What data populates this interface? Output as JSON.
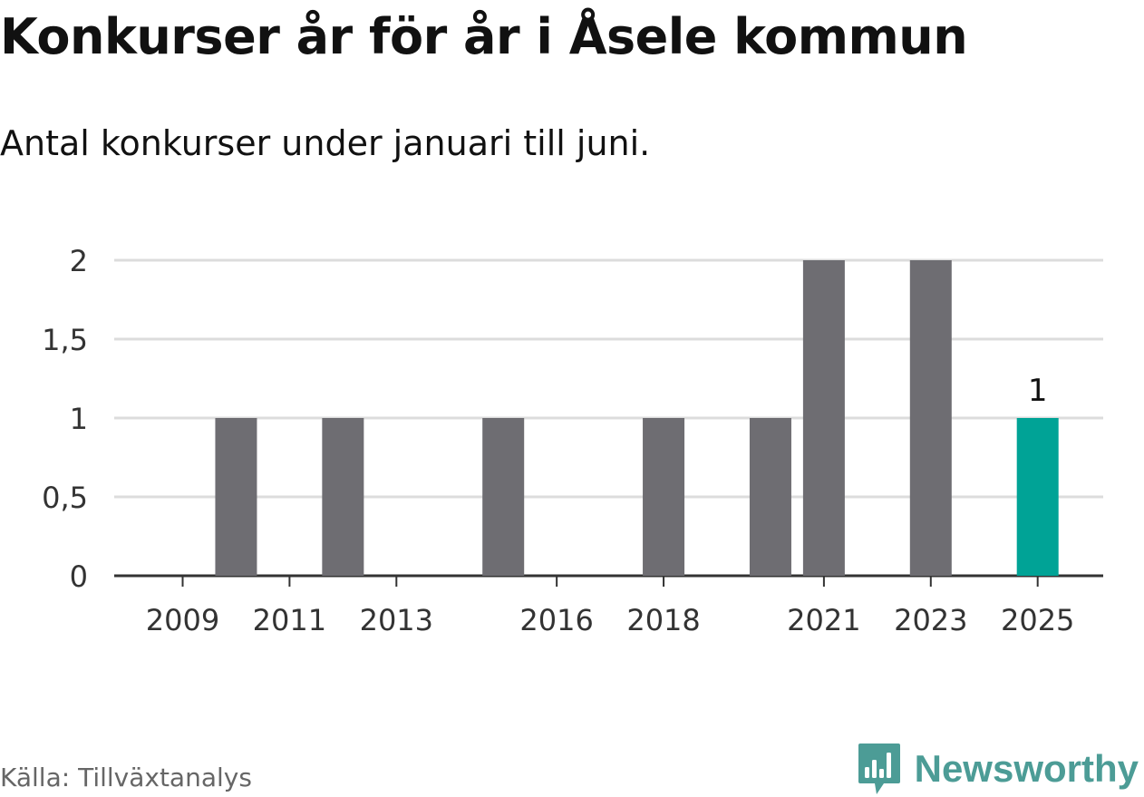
{
  "chart_data": {
    "type": "bar",
    "title": "Konkurser år för år i Åsele kommun",
    "subtitle": "Antal konkurser under januari till juni.",
    "categories": [
      "2009",
      "2010",
      "2011",
      "2012",
      "2013",
      "2014",
      "2015",
      "2016",
      "2017",
      "2018",
      "2019",
      "2020",
      "2021",
      "2022",
      "2023",
      "2024",
      "2025"
    ],
    "values": [
      0,
      1,
      0,
      1,
      0,
      0,
      1,
      0,
      0,
      1,
      0,
      1,
      2,
      0,
      2,
      0,
      1
    ],
    "x_tick_labels": [
      "2009",
      "2011",
      "2013",
      "2016",
      "2018",
      "2021",
      "2023",
      "2025"
    ],
    "y_ticks": [
      0,
      0.5,
      1,
      1.5,
      2
    ],
    "y_tick_labels": [
      "0",
      "0,5",
      "1",
      "1,5",
      "2"
    ],
    "ylim": [
      0,
      2
    ],
    "grid": true,
    "xlabel": "",
    "ylabel": "",
    "highlight": {
      "category": "2025",
      "label": "1"
    },
    "colors": {
      "bar": "#6e6d72",
      "highlight": "#00a396",
      "grid": "#dcdcdc",
      "axis": "#333333"
    }
  },
  "source": "Källa: Tillväxtanalys",
  "brand": {
    "name": "Newsworthy",
    "icon": "newsworthy-logo-icon",
    "color": "#4c9c96"
  }
}
